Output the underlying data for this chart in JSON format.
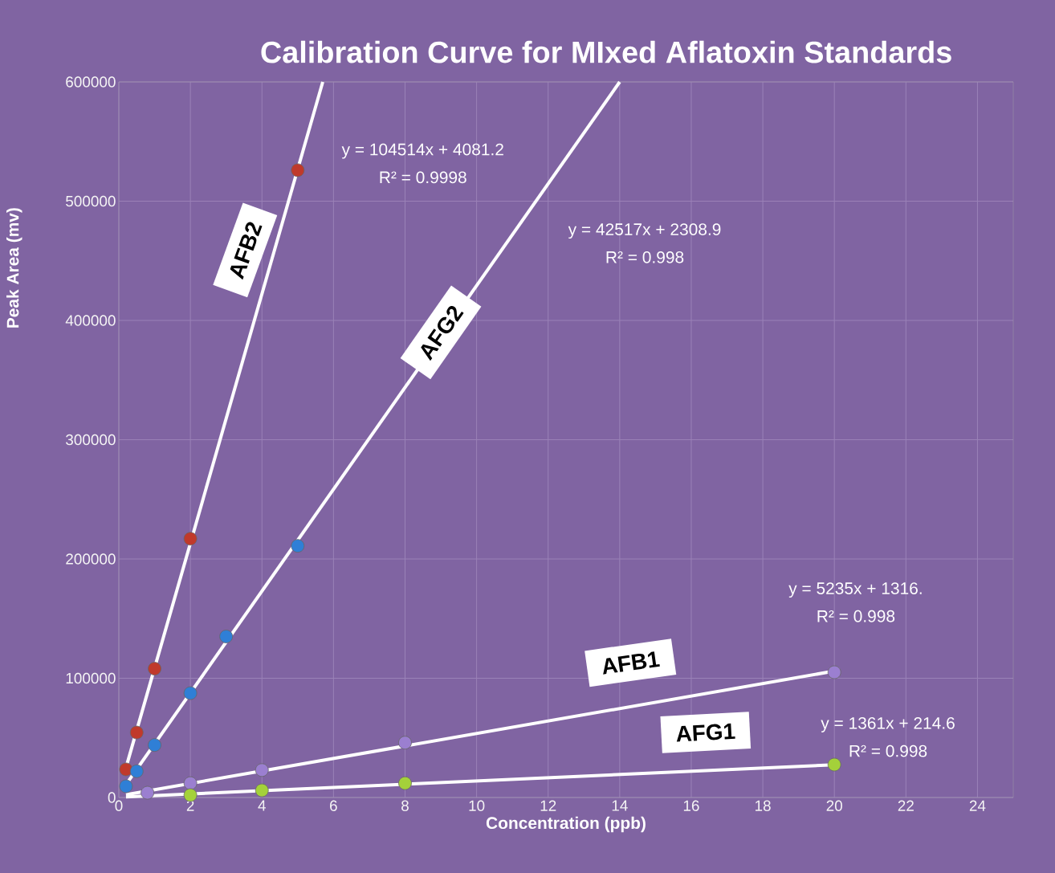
{
  "chart_data": {
    "type": "scatter",
    "title": "Calibration Curve for MIxed Aflatoxin Standards",
    "xlabel": "Concentration (ppb)",
    "ylabel": "Peak Area (mv)",
    "xlim": [
      0,
      25
    ],
    "xticks": [
      0,
      2,
      4,
      6,
      8,
      10,
      12,
      14,
      16,
      18,
      20,
      22,
      24
    ],
    "ylim": [
      0,
      600000
    ],
    "yticks": [
      0,
      100000,
      200000,
      300000,
      400000,
      500000,
      600000
    ],
    "grid": true,
    "series": [
      {
        "color": "#c0392b",
        "marker": "circle",
        "x": [
          0.2,
          0.5,
          1,
          2,
          5
        ],
        "values": [
          23600,
          54500,
          108000,
          217000,
          526000
        ]
      },
      {
        "color": "#2f7fd6",
        "marker": "circle",
        "x": [
          0.2,
          0.5,
          1,
          2,
          3,
          5
        ],
        "values": [
          9400,
          22000,
          44000,
          87500,
          135000,
          211000
        ]
      },
      {
        "color": "#9b7fd0",
        "marker": "circle",
        "x": [
          0.8,
          2,
          4,
          8,
          20
        ],
        "values": [
          4000,
          12000,
          23000,
          46000,
          105000
        ]
      },
      {
        "color": "#a4d13a",
        "marker": "circle",
        "x": [
          2,
          4,
          8,
          20
        ],
        "values": [
          2000,
          6000,
          12000,
          27600
        ]
      },
      {
        "type": "line",
        "name": "AFB2",
        "color": "#ffffff",
        "line_style": "solid",
        "marker": "none",
        "x": [
          0.2,
          5.7
        ],
        "values": [
          25000,
          600000
        ]
      },
      {
        "type": "line",
        "name": "AFG2",
        "color": "#ffffff",
        "line_style": "solid",
        "marker": "none",
        "x": [
          0.2,
          14.0
        ],
        "values": [
          10800,
          600000
        ]
      },
      {
        "type": "line",
        "name": "AFB1",
        "color": "#ffffff",
        "line_style": "solid",
        "marker": "none",
        "x": [
          0.2,
          20
        ],
        "values": [
          2400,
          106000
        ]
      },
      {
        "type": "line",
        "name": "AFG1",
        "color": "#ffffff",
        "line_style": "solid",
        "marker": "none",
        "x": [
          0.2,
          20
        ],
        "values": [
          500,
          27400
        ]
      }
    ],
    "annotations": [
      "y = 104514x + 4081.2",
      "R² = 0.9998",
      "y = 42517x + 2308.9",
      "R² = 0.998",
      "y = 5235x + 1316.",
      "R² = 0.998",
      "y = 1361x + 214.6",
      "R² = 0.998"
    ]
  }
}
